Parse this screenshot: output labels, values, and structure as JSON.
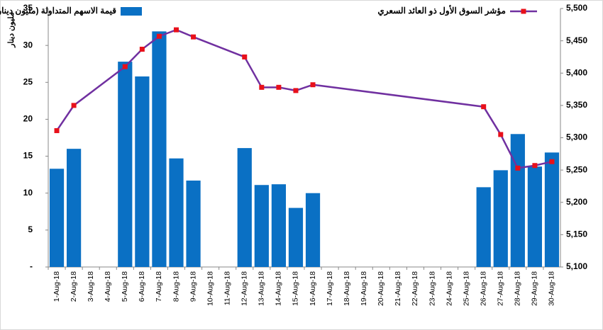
{
  "chart_data": {
    "type": "bar-line",
    "y_axis_label": "مليون دينار",
    "categories": [
      "1-Aug-18",
      "2-Aug-18",
      "3-Aug-18",
      "4-Aug-18",
      "5-Aug-18",
      "6-Aug-18",
      "7-Aug-18",
      "8-Aug-18",
      "9-Aug-18",
      "10-Aug-18",
      "11-Aug-18",
      "12-Aug-18",
      "13-Aug-18",
      "14-Aug-18",
      "15-Aug-18",
      "16-Aug-18",
      "17-Aug-18",
      "18-Aug-18",
      "19-Aug-18",
      "20-Aug-18",
      "21-Aug-18",
      "22-Aug-18",
      "23-Aug-18",
      "24-Aug-18",
      "25-Aug-18",
      "26-Aug-18",
      "27-Aug-18",
      "28-Aug-18",
      "29-Aug-18",
      "30-Aug-18"
    ],
    "series": [
      {
        "name": "قيمة الاسهم المتداولة (مليون دينار)",
        "type": "bar",
        "color": "#0a70c4",
        "axis": "y",
        "values": [
          13.3,
          16,
          null,
          null,
          27.8,
          25.8,
          31.9,
          14.7,
          11.7,
          null,
          null,
          16.1,
          11.1,
          11.2,
          8,
          10,
          null,
          null,
          null,
          null,
          null,
          null,
          null,
          null,
          null,
          10.8,
          13.1,
          18,
          13.6,
          15.5
        ]
      },
      {
        "name": "مؤشر السوق الأول ذو العائد السعري",
        "type": "line",
        "color": "#7030a0",
        "marker_color": "#e8101a",
        "axis": "y2",
        "values": [
          5311,
          5350,
          null,
          null,
          5410,
          5437,
          5457,
          5467,
          5456,
          null,
          null,
          5425,
          5378,
          5378,
          5373,
          5382,
          null,
          null,
          null,
          null,
          null,
          null,
          null,
          null,
          null,
          5348,
          5305,
          5253,
          5257,
          5263
        ]
      }
    ],
    "ylim": [
      0,
      35
    ],
    "yticks": [
      {
        "value": 0,
        "label": "-"
      },
      5,
      10,
      15,
      20,
      25,
      30,
      35
    ],
    "y2lim": [
      5100,
      5500
    ],
    "y2ticks": [
      {
        "value": 5100,
        "label": "5,100"
      },
      {
        "value": 5150,
        "label": "5,150"
      },
      {
        "value": 5200,
        "label": "5,200"
      },
      {
        "value": 5250,
        "label": "5,250"
      },
      {
        "value": 5300,
        "label": "5,300"
      },
      {
        "value": 5350,
        "label": "5,350"
      },
      {
        "value": 5400,
        "label": "5,400"
      },
      {
        "value": 5450,
        "label": "5,450"
      },
      {
        "value": 5500,
        "label": "5,500"
      }
    ],
    "legend": "top"
  }
}
